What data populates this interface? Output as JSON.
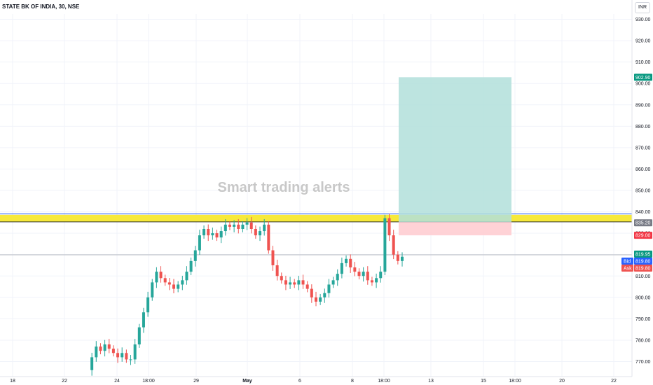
{
  "header": {
    "symbol_label": "STATE BK OF INDIA, 30, NSE",
    "currency_button": "INR"
  },
  "watermark": "Smart trading alerts",
  "colors": {
    "up": "#26a69a",
    "down": "#ef5350",
    "profit_zone": "#b2dfdb",
    "loss_zone": "#ffcdd2",
    "highlight_band": "#f7e93a",
    "bid": "#2962ff",
    "ask": "#ef5350",
    "last": "#089981"
  },
  "chart_data": {
    "type": "candlestick",
    "y_axis": {
      "range": [
        765,
        935
      ],
      "ticks": [
        "770.00",
        "780.00",
        "790.00",
        "800.00",
        "810.00",
        "820.00",
        "830.00",
        "840.00",
        "850.00",
        "860.00",
        "870.00",
        "880.00",
        "890.00",
        "900.00",
        "910.00",
        "920.00",
        "930.00"
      ]
    },
    "x_axis": {
      "ticks": [
        "18",
        "22",
        "24",
        "18:00",
        "29",
        "May",
        "6",
        "8",
        "18:00",
        "13",
        "15",
        "18:00",
        "20",
        "22"
      ]
    },
    "price_tags": {
      "target": "902.90",
      "entry": "835.20",
      "stop": "829.00",
      "last": "819.95",
      "bid_label": "Bid",
      "bid": "819.80",
      "ask_label": "Ask",
      "ask": "819.80"
    },
    "levels": {
      "band": [
        835.3,
        838.6
      ],
      "band_top_line": 839.0,
      "last_line": 819.9
    },
    "position": {
      "entry": 835.2,
      "target": 902.9,
      "stop": 829.0
    },
    "price_path": [
      766,
      772,
      777,
      775,
      778,
      776,
      774,
      772,
      774,
      771,
      771,
      778,
      786,
      793,
      800,
      807,
      812,
      809,
      807,
      806,
      804,
      806,
      808,
      812,
      817,
      822,
      829,
      832,
      829,
      830,
      828,
      831,
      834,
      833,
      834,
      832,
      834,
      835,
      832,
      829,
      831,
      834,
      822,
      815,
      810,
      808,
      806,
      807,
      806,
      808,
      806,
      804,
      800,
      798,
      800,
      802,
      806,
      808,
      811,
      816,
      818,
      814,
      812,
      810,
      812,
      808,
      807,
      809,
      812,
      837,
      829,
      820,
      817,
      819
    ]
  }
}
